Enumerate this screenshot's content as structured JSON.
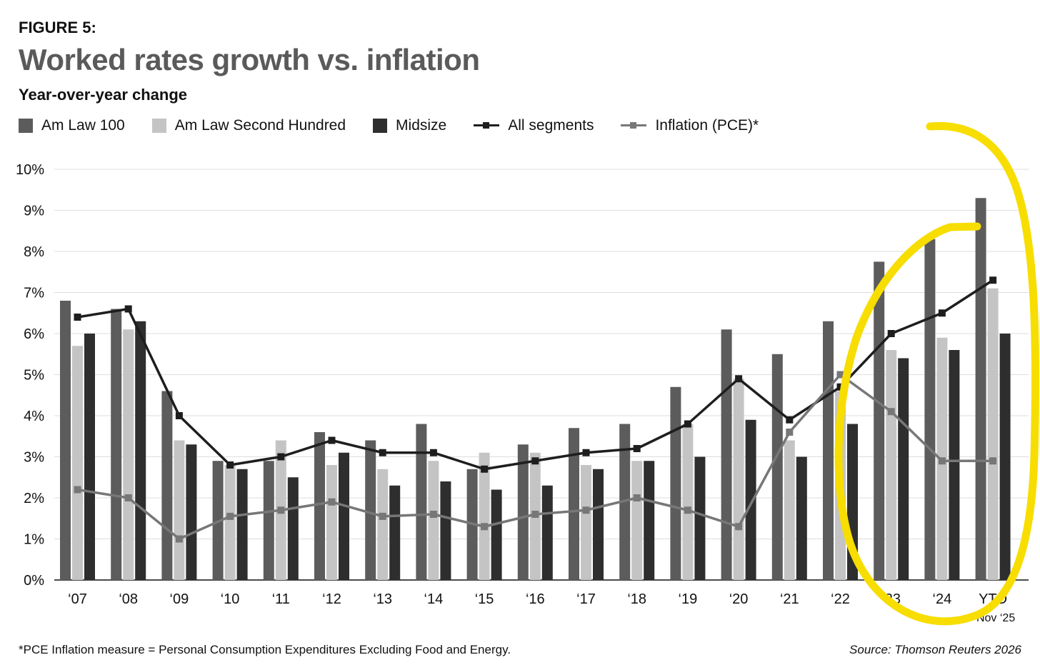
{
  "figure_label": "FIGURE 5:",
  "title": "Worked rates growth vs. inflation",
  "subtitle": "Year-over-year change",
  "footnote": "*PCE Inflation measure =  Personal Consumption Expenditures Excluding Food and Energy.",
  "source": "Source: Thomson Reuters 2026",
  "colors": {
    "am_law_100": "#5c5c5c",
    "am_law_second_hundred": "#c4c4c4",
    "midsize": "#2e2e2e",
    "all_segments": "#1e1e1e",
    "inflation": "#777777",
    "grid": "#dedede",
    "annotation": "#f7dd00"
  },
  "legend": [
    {
      "label": "Am Law 100",
      "kind": "square",
      "color_key": "am_law_100"
    },
    {
      "label": "Am Law Second Hundred",
      "kind": "square",
      "color_key": "am_law_second_hundred"
    },
    {
      "label": "Midsize",
      "kind": "square",
      "color_key": "midsize"
    },
    {
      "label": "All segments",
      "kind": "line",
      "color_key": "all_segments"
    },
    {
      "label": "Inflation (PCE)*",
      "kind": "line",
      "color_key": "inflation"
    }
  ],
  "chart_data": {
    "type": "bar",
    "categories": [
      "‘07",
      "‘08",
      "‘09",
      "‘10",
      "‘11",
      "‘12",
      "‘13",
      "‘14",
      "‘15",
      "‘16",
      "‘17",
      "‘18",
      "‘19",
      "‘20",
      "‘21",
      "‘22",
      "‘23",
      "‘24",
      "YTD"
    ],
    "category_sublabels": [
      "",
      "",
      "",
      "",
      "",
      "",
      "",
      "",
      "",
      "",
      "",
      "",
      "",
      "",
      "",
      "",
      "",
      "",
      "Nov ‘25"
    ],
    "ylim": [
      0,
      10
    ],
    "yticks": [
      0,
      1,
      2,
      3,
      4,
      5,
      6,
      7,
      8,
      9,
      10
    ],
    "ytick_labels": [
      "0%",
      "1%",
      "2%",
      "3%",
      "4%",
      "5%",
      "6%",
      "7%",
      "8%",
      "9%",
      "10%"
    ],
    "grid": true,
    "legend_position": "top-left",
    "bar_series": [
      {
        "name": "Am Law 100",
        "color_key": "am_law_100",
        "values": [
          6.8,
          6.6,
          4.6,
          2.9,
          2.9,
          3.6,
          3.4,
          3.8,
          2.7,
          3.3,
          3.7,
          3.8,
          4.7,
          6.1,
          5.5,
          6.3,
          7.75,
          8.3,
          9.3
        ]
      },
      {
        "name": "Am Law Second Hundred",
        "color_key": "am_law_second_hundred",
        "values": [
          5.7,
          6.1,
          3.4,
          2.8,
          3.4,
          2.8,
          2.7,
          2.9,
          3.1,
          3.1,
          2.8,
          2.9,
          3.8,
          4.9,
          3.4,
          4.6,
          5.6,
          5.9,
          7.1
        ]
      },
      {
        "name": "Midsize",
        "color_key": "midsize",
        "values": [
          6.0,
          6.3,
          3.3,
          2.7,
          2.5,
          3.1,
          2.3,
          2.4,
          2.2,
          2.3,
          2.7,
          2.9,
          3.0,
          3.9,
          3.0,
          3.8,
          5.4,
          5.6,
          6.0
        ]
      }
    ],
    "line_series": [
      {
        "name": "All segments",
        "color_key": "all_segments",
        "values": [
          6.4,
          6.6,
          4.0,
          2.8,
          3.0,
          3.4,
          3.1,
          3.1,
          2.7,
          2.9,
          3.1,
          3.2,
          3.8,
          4.9,
          3.9,
          4.7,
          6.0,
          6.5,
          7.3
        ]
      },
      {
        "name": "Inflation (PCE)*",
        "color_key": "inflation",
        "values": [
          2.2,
          2.0,
          1.0,
          1.55,
          1.7,
          1.9,
          1.55,
          1.6,
          1.3,
          1.6,
          1.7,
          2.0,
          1.7,
          1.3,
          3.6,
          5.0,
          4.1,
          2.9,
          2.9
        ]
      }
    ]
  }
}
